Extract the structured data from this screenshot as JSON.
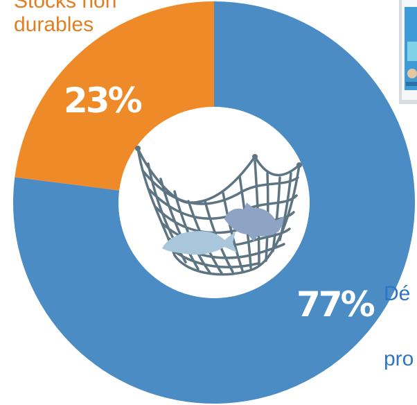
{
  "chart_data": {
    "type": "pie",
    "slices": [
      {
        "label_lines": [
          "Stocks non",
          "durables"
        ],
        "value_label": "23%",
        "value": 23,
        "color": "#ee8a27"
      },
      {
        "label_lines": [
          "Dé",
          "pro"
        ],
        "value_label": "77%",
        "value": 77,
        "color": "#4a8cc3"
      }
    ],
    "legend": "outside"
  },
  "icon": {
    "name": "fishing-net-icon",
    "net_color": "#5d7482",
    "fish_colors": [
      "#a9c7da",
      "#8fa4c4"
    ]
  },
  "thumbnail": {
    "name": "image-thumbnail",
    "colors": [
      "#3f9bd5",
      "#7fd2e8",
      "#e8c7a0"
    ]
  }
}
